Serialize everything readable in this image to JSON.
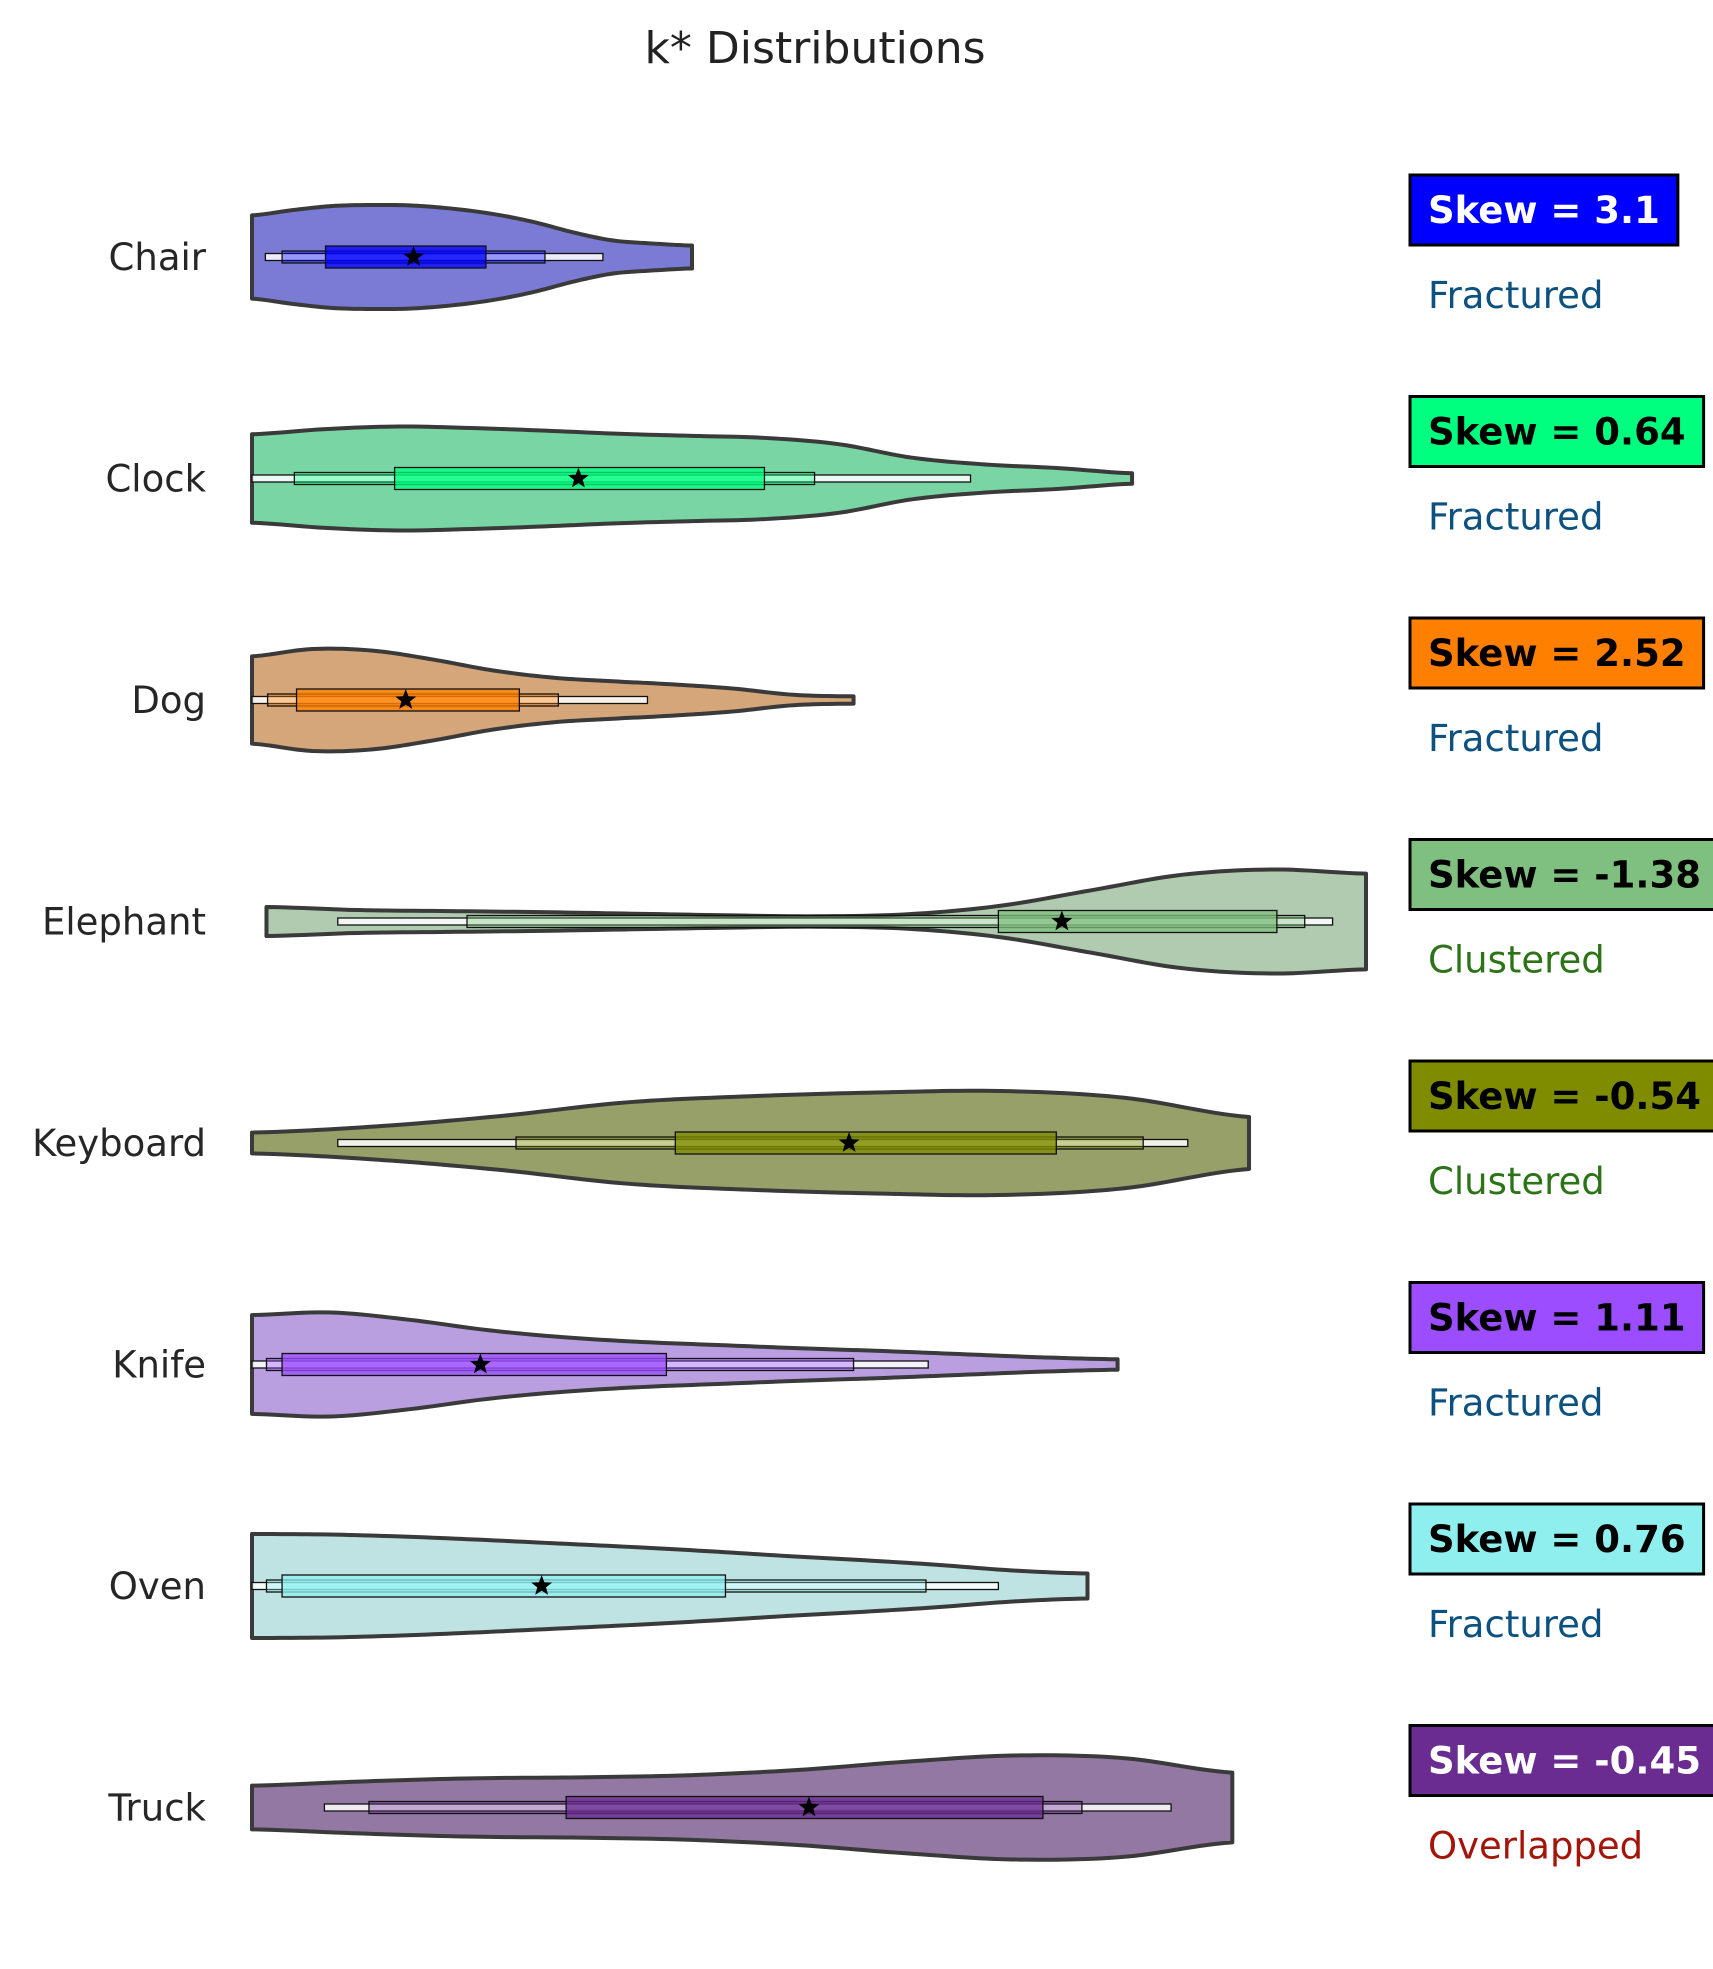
{
  "chart_data": {
    "type": "violin",
    "orientation": "horizontal",
    "title": "k* Distributions",
    "xlabel": "",
    "ylabel": "",
    "axes_visible": false,
    "grid": false,
    "categories": [
      "Chair",
      "Clock",
      "Dog",
      "Elephant",
      "Keyboard",
      "Knife",
      "Oven",
      "Truck"
    ],
    "series": [
      {
        "category": "Chair",
        "color": "#0000FF",
        "fill_color": "#7B7BD6",
        "range": [
          0.0,
          0.395
        ],
        "density": [
          0.8,
          0.9,
          0.98,
          1.0,
          0.99,
          0.93,
          0.83,
          0.68,
          0.48,
          0.32,
          0.26,
          0.22
        ],
        "box_outer": [
          0.012,
          0.315
        ],
        "box_mid": [
          0.027,
          0.263
        ],
        "box_inner": [
          0.066,
          0.21
        ],
        "mean": 0.145,
        "skew_label": "Skew = 3.1",
        "skew_text_color": "#FFFFFF",
        "status": "Fractured",
        "status_color": "#0C5180"
      },
      {
        "category": "Clock",
        "color": "#00FF7F",
        "fill_color": "#7AD5A5",
        "range": [
          0.0,
          0.79
        ],
        "density": [
          0.85,
          0.95,
          1.0,
          0.97,
          0.92,
          0.86,
          0.82,
          0.78,
          0.66,
          0.4,
          0.27,
          0.2,
          0.1
        ],
        "box_outer": [
          0.0,
          0.645
        ],
        "box_mid": [
          0.038,
          0.505
        ],
        "box_inner": [
          0.128,
          0.46
        ],
        "mean": 0.293,
        "skew_label": "Skew = 0.64",
        "skew_text_color": "#000000",
        "status": "Fractured",
        "status_color": "#0C5180"
      },
      {
        "category": "Dog",
        "color": "#FF7F00",
        "fill_color": "#D5A679",
        "range": [
          0.0,
          0.54
        ],
        "density": [
          0.84,
          0.98,
          0.95,
          0.78,
          0.57,
          0.43,
          0.36,
          0.3,
          0.22,
          0.1,
          0.07
        ],
        "box_outer": [
          0.0,
          0.355
        ],
        "box_mid": [
          0.014,
          0.275
        ],
        "box_inner": [
          0.04,
          0.24
        ],
        "mean": 0.138,
        "skew_label": "Skew = 2.52",
        "skew_text_color": "#000000",
        "status": "Fractured",
        "status_color": "#0C5180"
      },
      {
        "category": "Elephant",
        "color": "#7FBF7F",
        "fill_color": "#B0CBB0",
        "range": [
          0.013,
          1.0
        ],
        "density": [
          0.28,
          0.22,
          0.2,
          0.18,
          0.15,
          0.12,
          0.1,
          0.14,
          0.3,
          0.6,
          0.9,
          1.0,
          0.92
        ],
        "box_outer": [
          0.077,
          0.97
        ],
        "box_mid": [
          0.193,
          0.945
        ],
        "box_inner": [
          0.67,
          0.92
        ],
        "mean": 0.727,
        "skew_label": "Skew = -1.38",
        "skew_text_color": "#000000",
        "status": "Clustered",
        "status_color": "#2D7418"
      },
      {
        "category": "Keyboard",
        "color": "#7F8C00",
        "fill_color": "#97A068",
        "range": [
          0.0,
          0.895
        ],
        "density": [
          0.2,
          0.32,
          0.52,
          0.78,
          0.9,
          0.97,
          1.0,
          0.87,
          0.5
        ],
        "box_outer": [
          0.077,
          0.84
        ],
        "box_mid": [
          0.237,
          0.8
        ],
        "box_inner": [
          0.38,
          0.722
        ],
        "mean": 0.536,
        "skew_label": "Skew = -0.54",
        "skew_text_color": "#000000",
        "status": "Clustered",
        "status_color": "#2D7418"
      },
      {
        "category": "Knife",
        "color": "#9B4DFF",
        "fill_color": "#B99FE0",
        "range": [
          0.0,
          0.777
        ],
        "density": [
          0.95,
          1.0,
          0.86,
          0.66,
          0.52,
          0.43,
          0.37,
          0.31,
          0.26,
          0.2,
          0.14,
          0.1
        ],
        "box_outer": [
          0.0,
          0.607
        ],
        "box_mid": [
          0.013,
          0.54
        ],
        "box_inner": [
          0.027,
          0.372
        ],
        "mean": 0.205,
        "skew_label": "Skew = 1.11",
        "skew_text_color": "#000000",
        "status": "Fractured",
        "status_color": "#0C5180"
      },
      {
        "category": "Oven",
        "color": "#8FEFEF",
        "fill_color": "#BFE2E2",
        "range": [
          0.0,
          0.75
        ],
        "density": [
          1.0,
          0.99,
          0.95,
          0.89,
          0.82,
          0.75,
          0.67,
          0.58,
          0.5,
          0.41,
          0.3,
          0.24
        ],
        "box_outer": [
          0.0,
          0.67
        ],
        "box_mid": [
          0.013,
          0.605
        ],
        "box_inner": [
          0.027,
          0.425
        ],
        "mean": 0.26,
        "skew_label": "Skew = 0.76",
        "skew_text_color": "#000000",
        "status": "Fractured",
        "status_color": "#0C5180"
      },
      {
        "category": "Truck",
        "color": "#6A2C91",
        "fill_color": "#9278A2",
        "range": [
          0.0,
          0.88
        ],
        "density": [
          0.42,
          0.5,
          0.56,
          0.58,
          0.62,
          0.72,
          0.88,
          1.0,
          0.95,
          0.67
        ],
        "box_outer": [
          0.065,
          0.825
        ],
        "box_mid": [
          0.105,
          0.745
        ],
        "box_inner": [
          0.282,
          0.71
        ],
        "mean": 0.5,
        "skew_label": "Skew = -0.45",
        "skew_text_color": "#FFFFFF",
        "status": "Overlapped",
        "status_color": "#A31509"
      }
    ]
  }
}
